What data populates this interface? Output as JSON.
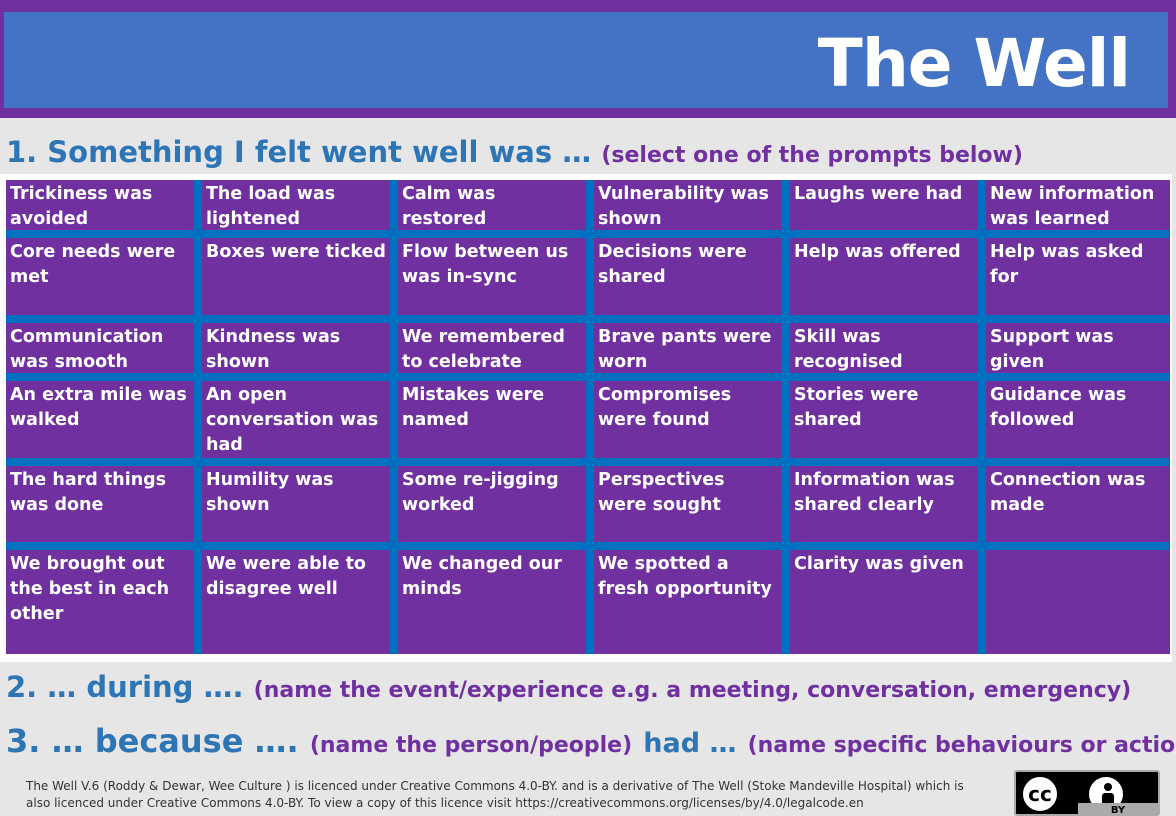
{
  "header": {
    "title": "The Well"
  },
  "section1": {
    "heading": "1. Something I felt went well was …",
    "instruction": "(select one of the prompts below)"
  },
  "grid": {
    "rows": [
      [
        "Trickiness was avoided",
        "The load was lightened",
        "Calm was restored",
        "Vulnerability was shown",
        "Laughs were had",
        "New information was learned"
      ],
      [
        "Core needs were met",
        "Boxes were ticked",
        "Flow between us was in-sync",
        "Decisions were shared",
        "Help was offered",
        "Help was asked for"
      ],
      [
        "Communication was smooth",
        "Kindness was shown",
        "We remembered to celebrate",
        "Brave pants were worn",
        "Skill was recognised",
        "Support was given"
      ],
      [
        "An extra mile was walked",
        "An open conversation was had",
        "Mistakes were named",
        "Compromises were found",
        "Stories were shared",
        "Guidance was followed"
      ],
      [
        "The hard things was done",
        "Humility was shown",
        "Some re-jigging worked",
        "Perspectives were sought",
        "Information was shared clearly",
        "Connection was made"
      ],
      [
        "We brought out the best in each other",
        "We were able to disagree well",
        "We changed our minds",
        "We spotted a fresh opportunity",
        "Clarity was given",
        ""
      ]
    ]
  },
  "section2": {
    "heading": "2. … during ….",
    "instruction": "(name the event/experience e.g. a meeting, conversation, emergency)"
  },
  "section3": {
    "heading": "3. … because ….",
    "instruction_a": "(name the person/people)",
    "middle": "had …",
    "instruction_b": "(name specific behaviours or actions)"
  },
  "footer": {
    "licence_text": "The Well V.6 (Roddy & Dewar, Wee Culture ) is licenced under Creative Commons 4.0-BY. and is a derivative of The Well (Stoke Mandeville Hospital) which is also licenced under Creative Commons 4.0-BY. To view a copy of this licence visit https://creativecommons.org/licenses/by/4.0/legalcode.en",
    "badge_cc": "cc",
    "badge_by": "BY"
  },
  "colors": {
    "purple": "#7030a0",
    "blue": "#4472c4",
    "heading_blue": "#2e75b6",
    "grid_blue": "#0070c0"
  }
}
